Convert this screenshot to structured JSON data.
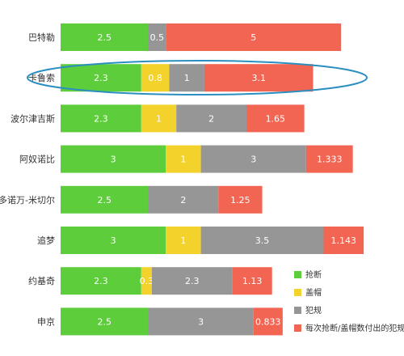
{
  "chart_data": {
    "type": "bar",
    "orientation": "horizontal",
    "stacked": true,
    "categories": [
      "巴特勒",
      "卡鲁索",
      "波尔津吉斯",
      "阿奴诺比",
      "多诺万-米切尔",
      "追梦",
      "约基奇",
      "申京"
    ],
    "highlighted_category": "卡鲁索",
    "series": [
      {
        "name": "抢断",
        "color": "#5dcd3b",
        "values": [
          2.5,
          2.3,
          2.3,
          3,
          2.5,
          3,
          2.3,
          2.5
        ],
        "labels": [
          "2.5",
          "2.3",
          "2.3",
          "3",
          "2.5",
          "3",
          "2.3",
          "2.5"
        ]
      },
      {
        "name": "盖帽",
        "color": "#f4d22c",
        "values": [
          0,
          0.8,
          1,
          1,
          0,
          1,
          0.3,
          0
        ],
        "labels": [
          "",
          "0.8",
          "1",
          "1",
          "",
          "1",
          "0.3",
          ""
        ]
      },
      {
        "name": "犯规",
        "color": "#969696",
        "values": [
          0.5,
          1,
          2,
          3,
          2,
          3.5,
          2.3,
          3
        ],
        "labels": [
          "0.5",
          "1",
          "2",
          "3",
          "2",
          "3.5",
          "2.3",
          "3"
        ]
      },
      {
        "name": "每次抢断/盖帽数付出的犯规数",
        "color": "#f36553",
        "values": [
          5,
          3.1,
          1.65,
          1.333,
          1.25,
          1.143,
          1.13,
          0.833
        ],
        "labels": [
          "5",
          "3.1",
          "1.65",
          "1.333",
          "1.25",
          "1.143",
          "1.13",
          "0.833"
        ]
      }
    ],
    "legend_position": "bottom-right",
    "grid": false
  }
}
